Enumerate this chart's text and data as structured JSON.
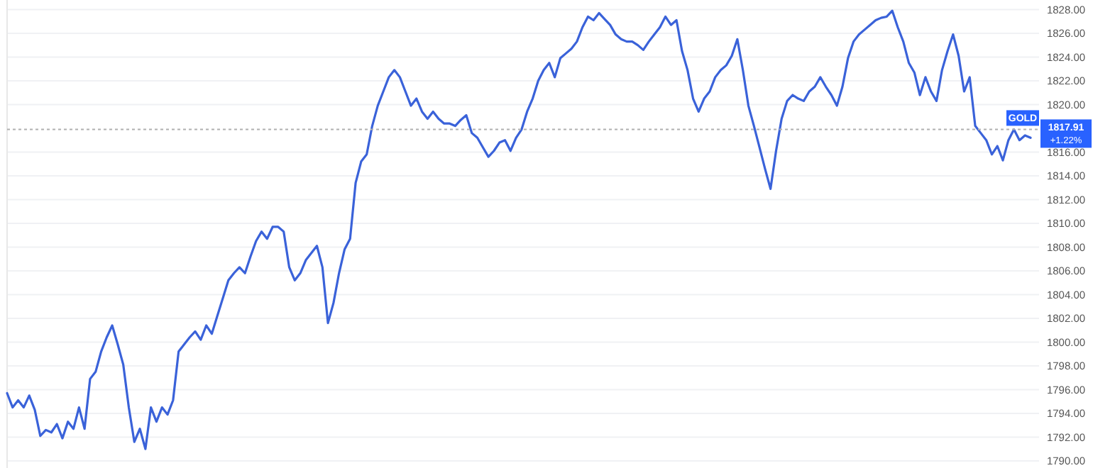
{
  "chart_data": {
    "type": "line",
    "categories": [
      null,
      null,
      null,
      null,
      null,
      null,
      null,
      null,
      null,
      null,
      null,
      null,
      null,
      null,
      null,
      null,
      null,
      null,
      null,
      null,
      null,
      null,
      null,
      null,
      null,
      null,
      null,
      null,
      null,
      null,
      null,
      null,
      null,
      null,
      null,
      null,
      null,
      null,
      null,
      null,
      null,
      null,
      null,
      null,
      null,
      null,
      null,
      null,
      null,
      null,
      null,
      null,
      null,
      null,
      null,
      null,
      null,
      null,
      null,
      null,
      null,
      null,
      null,
      null,
      null,
      null,
      null,
      null,
      null,
      null,
      null,
      null,
      null,
      null,
      null,
      null,
      null,
      null,
      null,
      null,
      null,
      null,
      null,
      null,
      null,
      null,
      null,
      null,
      null,
      null,
      null,
      null,
      null,
      null,
      null,
      null,
      null,
      null,
      null,
      null,
      null,
      null,
      null,
      null,
      null,
      null,
      null,
      null,
      null,
      null,
      null,
      null,
      null,
      null,
      null,
      null,
      null,
      null,
      null,
      null,
      null,
      null,
      null,
      null,
      null,
      null,
      null,
      null,
      null,
      null,
      null,
      null,
      null,
      null,
      null,
      null,
      null,
      null,
      null,
      null,
      null,
      null,
      null,
      null,
      null,
      null,
      null,
      null,
      null,
      null,
      null,
      null,
      null,
      null,
      null,
      null,
      null,
      null,
      null,
      null,
      null,
      null,
      null,
      null,
      null,
      null,
      null,
      null,
      null,
      null,
      null,
      null,
      null,
      null,
      null,
      null,
      null,
      null,
      null,
      null,
      null,
      null,
      null,
      null,
      null,
      null
    ],
    "series": [
      {
        "color": "#3a62d9",
        "values": [
          1795.7,
          1794.5,
          1795.1,
          1794.5,
          1795.5,
          1794.3,
          1792.1,
          1792.6,
          1792.4,
          1793.1,
          1791.9,
          1793.3,
          1792.7,
          1794.5,
          1792.7,
          1796.9,
          1797.5,
          1799.2,
          1800.4,
          1801.4,
          1799.8,
          1798.1,
          1794.5,
          1791.6,
          1792.7,
          1791.0,
          1794.5,
          1793.3,
          1794.5,
          1793.9,
          1795.1,
          1799.2,
          1799.8,
          1800.4,
          1800.9,
          1800.2,
          1801.4,
          1800.7,
          1802.2,
          1803.7,
          1805.2,
          1805.8,
          1806.3,
          1805.8,
          1807.2,
          1808.5,
          1809.3,
          1808.7,
          1809.7,
          1809.7,
          1809.3,
          1806.3,
          1805.2,
          1805.8,
          1806.9,
          1807.5,
          1808.1,
          1806.3,
          1801.6,
          1803.3,
          1805.8,
          1807.8,
          1808.7,
          1813.4,
          1815.2,
          1815.8,
          1818.2,
          1819.9,
          1821.1,
          1822.3,
          1822.9,
          1822.3,
          1821.1,
          1819.9,
          1820.5,
          1819.4,
          1818.8,
          1819.4,
          1818.8,
          1818.4,
          1818.4,
          1818.2,
          1818.7,
          1819.1,
          1817.6,
          1817.2,
          1816.4,
          1815.6,
          1816.1,
          1816.8,
          1817.0,
          1816.1,
          1817.2,
          1817.9,
          1819.4,
          1820.5,
          1822.0,
          1822.9,
          1823.5,
          1822.3,
          1823.9,
          1824.3,
          1824.7,
          1825.3,
          1826.5,
          1827.4,
          1827.1,
          1827.7,
          1827.2,
          1826.7,
          1825.9,
          1825.5,
          1825.3,
          1825.3,
          1825.0,
          1824.6,
          1825.3,
          1825.9,
          1826.5,
          1827.4,
          1826.7,
          1827.1,
          1824.5,
          1822.9,
          1820.5,
          1819.4,
          1820.5,
          1821.1,
          1822.3,
          1822.9,
          1823.3,
          1824.1,
          1825.5,
          1822.9,
          1819.9,
          1818.2,
          1816.4,
          1814.6,
          1812.9,
          1816.1,
          1818.8,
          1820.3,
          1820.8,
          1820.5,
          1820.3,
          1821.1,
          1821.5,
          1822.3,
          1821.5,
          1820.8,
          1819.9,
          1821.5,
          1823.9,
          1825.3,
          1825.9,
          1826.3,
          1826.7,
          1827.1,
          1827.3,
          1827.4,
          1827.9,
          1826.5,
          1825.3,
          1823.5,
          1822.7,
          1820.8,
          1822.3,
          1821.1,
          1820.3,
          1822.9,
          1824.5,
          1825.9,
          1824.1,
          1821.1,
          1822.3,
          1818.2,
          1817.6,
          1817.0,
          1815.8,
          1816.5,
          1815.3,
          1817.0,
          1817.9,
          1817.0,
          1817.4,
          1817.2
        ]
      }
    ],
    "ylim": [
      1789.4,
      1828.8
    ],
    "yticks": [
      {
        "value": 1790,
        "label": "1790.00"
      },
      {
        "value": 1792,
        "label": "1792.00"
      },
      {
        "value": 1794,
        "label": "1794.00"
      },
      {
        "value": 1796,
        "label": "1796.00"
      },
      {
        "value": 1798,
        "label": "1798.00"
      },
      {
        "value": 1800,
        "label": "1800.00"
      },
      {
        "value": 1802,
        "label": "1802.00"
      },
      {
        "value": 1804,
        "label": "1804.00"
      },
      {
        "value": 1806,
        "label": "1806.00"
      },
      {
        "value": 1808,
        "label": "1808.00"
      },
      {
        "value": 1810,
        "label": "1810.00"
      },
      {
        "value": 1812,
        "label": "1812.00"
      },
      {
        "value": 1814,
        "label": "1814.00"
      },
      {
        "value": 1816,
        "label": "1816.00"
      },
      {
        "value": 1820,
        "label": "1820.00"
      },
      {
        "value": 1822,
        "label": "1822.00"
      },
      {
        "value": 1824,
        "label": "1824.00"
      },
      {
        "value": 1826,
        "label": "1826.00"
      },
      {
        "value": 1828,
        "label": "1828.00"
      }
    ],
    "grid": "y",
    "tick_labels": "y",
    "line_style": "solid",
    "marker": "none",
    "ref_lines": [
      {
        "axis": "y",
        "value": 1817.91,
        "label": "1817.91",
        "color": "#b0b0b0",
        "line_style": "dotted"
      }
    ],
    "annotations": [
      "GOLD",
      "+1.22%"
    ]
  }
}
